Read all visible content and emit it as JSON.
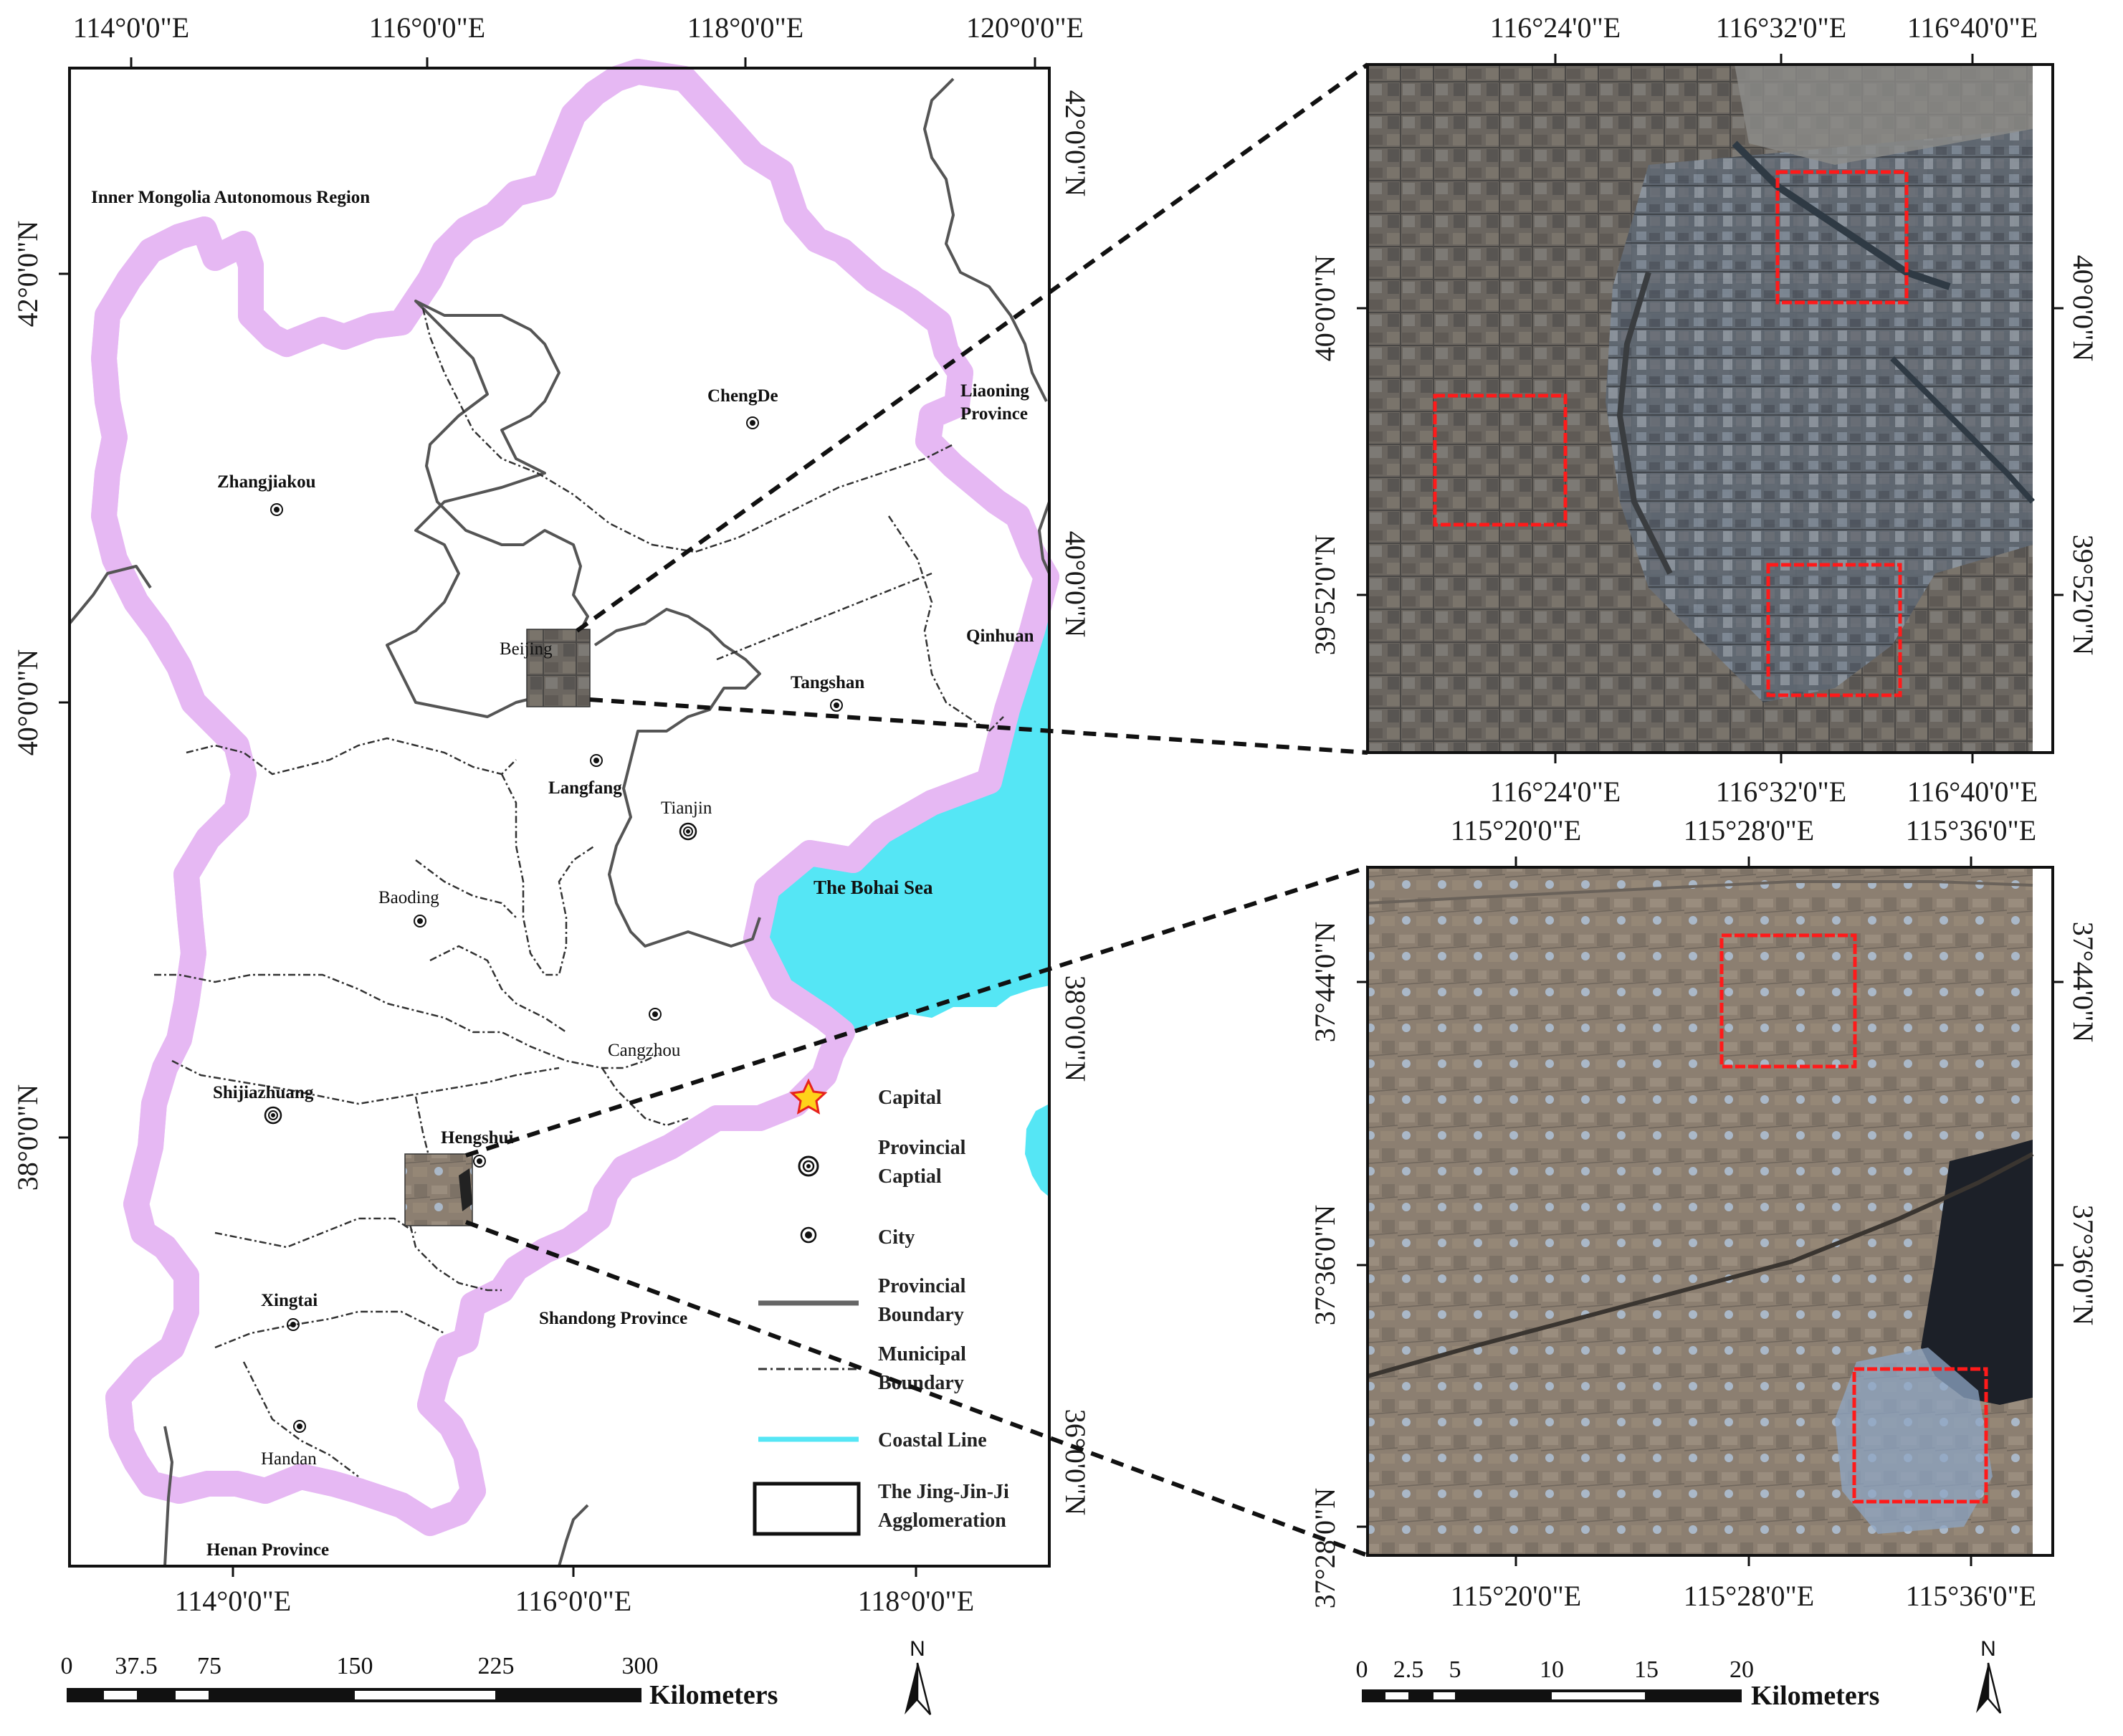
{
  "main_map": {
    "top_ticks": [
      "114°0'0\"E",
      "116°0'0\"E",
      "118°0'0\"E",
      "120°0'0\"E"
    ],
    "bottom_ticks": [
      "114°0'0\"E",
      "116°0'0\"E",
      "118°0'0\"E"
    ],
    "left_ticks": [
      "42°0'0\"N",
      "40°0'0\"N",
      "38°0'0\"N"
    ],
    "inner_right_ticks": [
      "42°0'0\"N",
      "40°0'0\"N",
      "38°0'0\"N",
      "36°0'0\"N"
    ],
    "regions": {
      "inner_mongolia": "Inner Mongolia Autonomous Region",
      "liaoning": "Liaoning Province",
      "shandong": "Shandong Province",
      "henan": "Henan Province",
      "bohai": "The Bohai Sea",
      "qinhuan": "Qinhuan"
    },
    "cities": {
      "chengde": "ChengDe",
      "zhangjiakou": "Zhangjiakou",
      "beijing": "Beijing",
      "tangshan": "Tangshan",
      "langfang": "Langfang",
      "tianjin": "Tianjin",
      "baoding": "Baoding",
      "cangzhou": "Cangzhou",
      "shijiazhuang": "Shijiazhuang",
      "hengshui": "Hengshui",
      "xingtai": "Xingtai",
      "handan": "Handan"
    }
  },
  "legend": {
    "capital": "Capital",
    "provincial_capital_1": "Provincial",
    "provincial_capital_2": "Captial",
    "city": "City",
    "prov_boundary_1": "Provincial",
    "prov_boundary_2": "Boundary",
    "muni_boundary_1": "Municipal",
    "muni_boundary_2": "Boundary",
    "coastal": "Coastal Line",
    "jjj_1": "The Jing-Jin-Ji",
    "jjj_2": "Agglomeration"
  },
  "inset_beijing": {
    "top_ticks": [
      "116°24'0\"E",
      "116°32'0\"E",
      "116°40'0\"E"
    ],
    "bottom_ticks": [
      "116°24'0\"E",
      "116°32'0\"E",
      "116°40'0\"E"
    ],
    "left_ticks": [
      "40°0'0\"N",
      "39°52'0\"N"
    ],
    "right_ticks": [
      "40°0'0\"N",
      "39°52'0\"N"
    ]
  },
  "inset_hengshui": {
    "top_ticks": [
      "115°20'0\"E",
      "115°28'0\"E",
      "115°36'0\"E"
    ],
    "bottom_ticks": [
      "115°20'0\"E",
      "115°28'0\"E",
      "115°36'0\"E"
    ],
    "left_ticks": [
      "37°44'0\"N",
      "37°36'0\"N",
      "37°28'0\"N"
    ],
    "right_ticks": [
      "37°44'0\"N",
      "37°36'0\"N"
    ]
  },
  "scalebar_main": {
    "labels": [
      "0",
      "37.5",
      "75",
      "150",
      "225",
      "300"
    ],
    "unit": "Kilometers"
  },
  "scalebar_inset": {
    "labels": [
      "0",
      "2.5",
      "5",
      "10",
      "15",
      "20"
    ],
    "unit": "Kilometers"
  },
  "north_arrow": "N",
  "colors": {
    "sea": "#55e6f5",
    "buffer": "#e6b8f3",
    "sample_box": "#ff1a1a",
    "boundary": "#555555"
  }
}
